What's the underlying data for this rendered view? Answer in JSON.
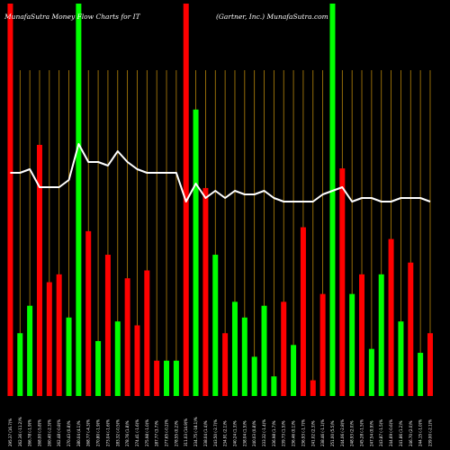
{
  "title_left": "MunafaSutra  Money Flow  Charts for IT",
  "title_right": "(Gartner,  Inc.) MunafaSutra.com",
  "chart_data": {
    "type": "bar",
    "title": "MunafaSutra  Money Flow  Charts for IT",
    "subtitle": "(Gartner,  Inc.) MunafaSutra.com",
    "colors": {
      "up": "#00ff00",
      "down": "#ff0000",
      "line": "#ffffff",
      "grid": "#b8860b",
      "background": "#000000"
    },
    "categories": [
      "295.37 (16.7)%",
      "262.36 (-11.2)%",
      "266.78 (-1.9)%",
      "268.00 (-5.8)%",
      "260.40 (-2.3)%",
      "262.48 (-0.8)%",
      "270.43 (0.8)%",
      "280.04 (4.1)%",
      "268.77 (-4.3)%",
      "270.80 (-1.9)%",
      "273.04 (-1.6)%",
      "283.32 (-0.5)%",
      "278.76 (1.8)%",
      "274.41 (-1.6)%",
      "275.98 (-1.0)%",
      "287.77 (3.7)%",
      "277.65 (-0.2)%",
      "278.55 (0.2)%",
      "311.03 (14.9)%",
      "234.75 (-18.1)%",
      "238.04 (1.4)%",
      "243.50 (-2.7)%",
      "234.91 (2.1)%",
      "240.24 (1.3)%",
      "238.04 (1.5)%",
      "240.03 (0.8)%",
      "233.32 (-1.4)%",
      "236.98 (1.7)%",
      "239.73 (1.5)%",
      "236.46 (0.1)%",
      "236.93 (-1.7)%",
      "241.02 (2.3)%",
      "238.46 (-1.1)%",
      "251.00 (5.5)%",
      "244.06 (-2.8)%",
      "248.93 (2.0)%",
      "245.28 (-1.5)%",
      "247.54 (0.9)%",
      "243.87 (-1.5)%",
      "244.69 (-0.6)%",
      "241.86 (1.2)%",
      "246.70 (2.0)%",
      "244.15 (-1.0)%",
      "239.00 (-2.1)%"
    ],
    "values": [
      100,
      16,
      23,
      64,
      29,
      31,
      20,
      100,
      42,
      14,
      36,
      19,
      30,
      18,
      32,
      9,
      9,
      9,
      100,
      73,
      53,
      36,
      16,
      24,
      20,
      10,
      23,
      5,
      24,
      13,
      43,
      4,
      26,
      100,
      58,
      26,
      31,
      12,
      31,
      40,
      19,
      34,
      11,
      16
    ],
    "directions": [
      "down",
      "up",
      "up",
      "down",
      "down",
      "down",
      "up",
      "up",
      "down",
      "up",
      "down",
      "up",
      "down",
      "down",
      "down",
      "down",
      "up",
      "up",
      "down",
      "up",
      "down",
      "up",
      "down",
      "up",
      "up",
      "up",
      "up",
      "up",
      "down",
      "up",
      "down",
      "down",
      "down",
      "up",
      "down",
      "up",
      "down",
      "up",
      "up",
      "down",
      "up",
      "down",
      "up",
      "down"
    ],
    "line": [
      62,
      62,
      63,
      58,
      58,
      58,
      60,
      70,
      65,
      65,
      64,
      68,
      65,
      63,
      62,
      62,
      62,
      62,
      54,
      59,
      55,
      57,
      55,
      57,
      56,
      56,
      57,
      55,
      54,
      54,
      54,
      54,
      56,
      57,
      58,
      54,
      55,
      55,
      54,
      54,
      55,
      55,
      55,
      54
    ],
    "ylim": [
      0,
      100
    ],
    "grid": true,
    "legend": "none"
  }
}
